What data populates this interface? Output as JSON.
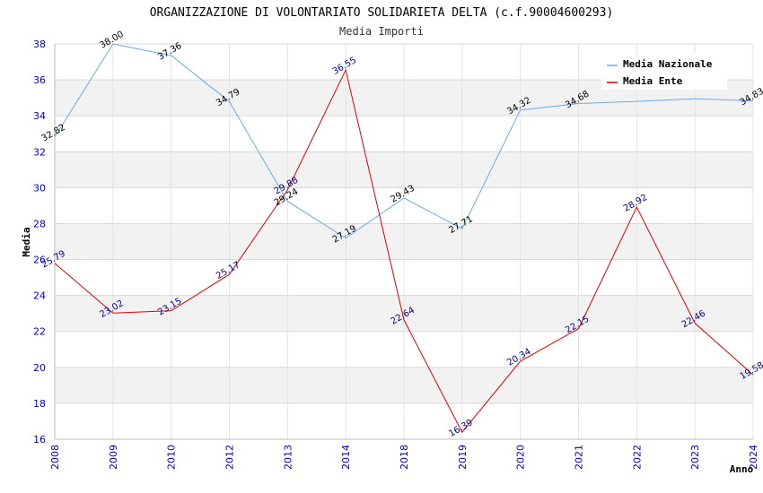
{
  "chart_data": {
    "type": "line",
    "title": "ORGANIZZAZIONE DI VOLONTARIATO SOLIDARIETA DELTA (c.f.90004600293)",
    "subtitle": "Media Importi",
    "xlabel": "Anno",
    "ylabel": "Media",
    "ylim": [
      16,
      38
    ],
    "yticks": [
      16,
      18,
      20,
      22,
      24,
      26,
      28,
      30,
      32,
      34,
      36,
      38
    ],
    "categories": [
      "2008",
      "2009",
      "2010",
      "2012",
      "2013",
      "2014",
      "2018",
      "2019",
      "2020",
      "2021",
      "2022",
      "2023",
      "2024"
    ],
    "legend_position": "top-right",
    "series": [
      {
        "name": "Media Nazionale",
        "color": "#6aaae6",
        "label_color": "#000000",
        "values": [
          32.82,
          38.0,
          37.36,
          34.79,
          29.24,
          27.19,
          29.43,
          27.71,
          34.32,
          34.68,
          34.8,
          34.95,
          34.83
        ],
        "labels": [
          "32.82",
          "38.00",
          "37.36",
          "34.79",
          "29.24",
          "27.19",
          "29.43",
          "27.71",
          "34.32",
          "34.68",
          "",
          "",
          "34.83"
        ]
      },
      {
        "name": "Media Ente",
        "color": "#dd0000",
        "label_color": "#000088",
        "values": [
          25.79,
          23.02,
          23.15,
          25.17,
          29.88,
          36.55,
          22.64,
          16.39,
          20.34,
          22.15,
          28.92,
          22.46,
          19.58
        ],
        "labels": [
          "25.79",
          "23.02",
          "23.15",
          "25.17",
          "29.88",
          "36.55",
          "22.64",
          "16.39",
          "20.34",
          "22.15",
          "28.92",
          "22.46",
          "19.58"
        ]
      }
    ]
  }
}
